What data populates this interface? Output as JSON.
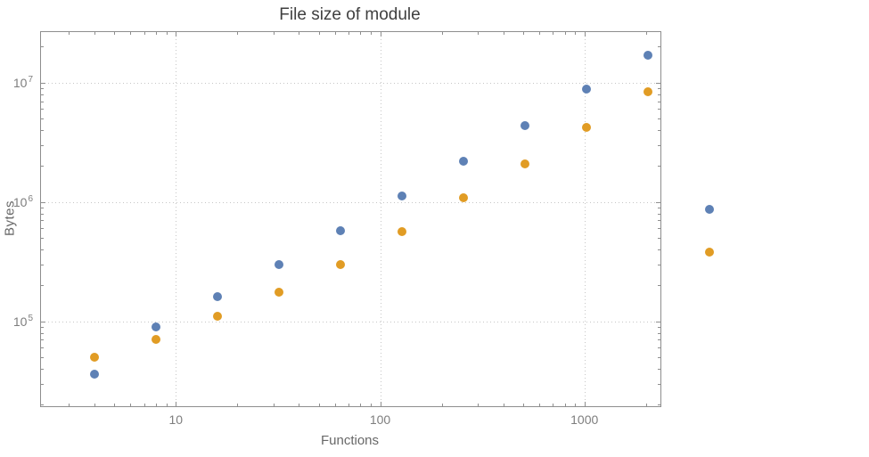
{
  "colors": {
    "series1": "#5e81b5",
    "series2": "#e19c24",
    "frame": "#8e8e8e",
    "grid": "#c6c6c6",
    "title": "#3f3f3f",
    "axis_labels": "#686868",
    "tick_labels": "#7e7e7e",
    "background": "#ffffff"
  },
  "chart_data": {
    "type": "scatter",
    "title": "File size of module",
    "xlabel": "Functions",
    "ylabel": "Bytes",
    "x_scale": "log",
    "y_scale": "log",
    "grid": true,
    "legend": "none",
    "x_range_log": [
      0.34,
      3.372
    ],
    "y_range_log": [
      4.287,
      7.424
    ],
    "x_ticks": [
      {
        "value": 10,
        "label": "10"
      },
      {
        "value": 100,
        "label": "100"
      },
      {
        "value": 1000,
        "label": "1000"
      }
    ],
    "y_ticks": [
      {
        "value": 100000,
        "label": "10^5"
      },
      {
        "value": 1000000,
        "label": "10^6"
      },
      {
        "value": 10000000,
        "label": "10^7"
      }
    ],
    "series": [
      {
        "name": "series1",
        "color": "#5e81b5",
        "points": [
          [
            4,
            36000
          ],
          [
            8,
            90000
          ],
          [
            16,
            160000
          ],
          [
            32,
            300000
          ],
          [
            64,
            570000
          ],
          [
            128,
            1120000
          ],
          [
            256,
            2200000
          ],
          [
            512,
            4400000
          ],
          [
            1024,
            8800000
          ],
          [
            2048,
            17000000
          ],
          [
            4096,
            860000
          ]
        ]
      },
      {
        "name": "series2",
        "color": "#e19c24",
        "points": [
          [
            4,
            50000
          ],
          [
            8,
            70000
          ],
          [
            16,
            110000
          ],
          [
            32,
            175000
          ],
          [
            64,
            300000
          ],
          [
            128,
            560000
          ],
          [
            256,
            1080000
          ],
          [
            512,
            2100000
          ],
          [
            1024,
            4200000
          ],
          [
            2048,
            8400000
          ],
          [
            4096,
            380000
          ]
        ]
      }
    ]
  }
}
